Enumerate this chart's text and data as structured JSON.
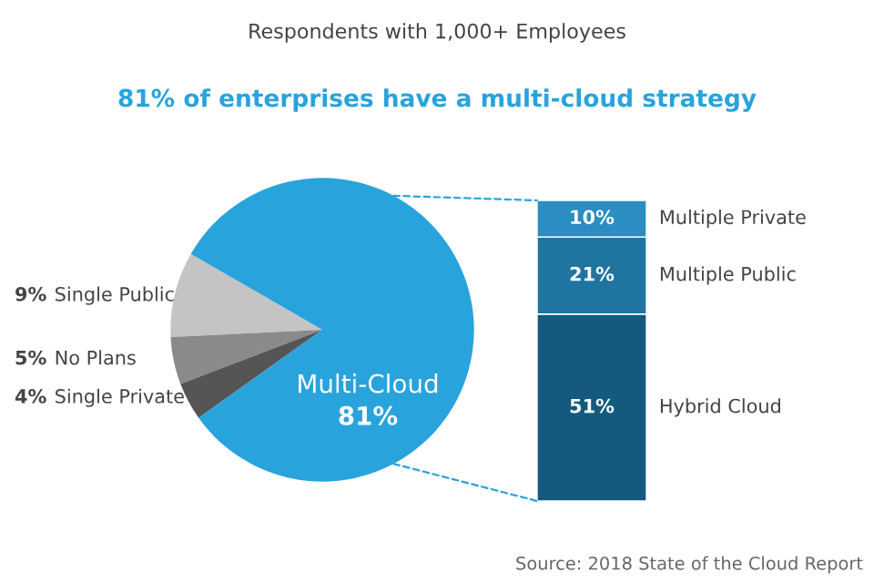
{
  "chart_data": [
    {
      "type": "pie",
      "title": "81% of enterprises have a multi-cloud strategy",
      "subtitle": "Respondents with 1,000+ Employees",
      "categories": [
        "Single Public",
        "No Plans",
        "Single Private",
        "Multi-Cloud"
      ],
      "values": [
        9,
        5,
        4,
        81
      ],
      "value_labels": [
        "9%",
        "5%",
        "4%",
        "81%"
      ],
      "colors": [
        "#c4c4c4",
        "#8a8a8a",
        "#555555",
        "#29a3dc"
      ]
    },
    {
      "type": "bar",
      "stacked": true,
      "categories": [
        null
      ],
      "series": [
        {
          "name": "Hybrid Cloud",
          "color": "#135a7e",
          "values": [
            51
          ],
          "value_labels": [
            "51%"
          ]
        },
        {
          "name": "Multiple Public",
          "color": "#1f74a0",
          "values": [
            21
          ],
          "value_labels": [
            "21%"
          ]
        },
        {
          "name": "Multiple Private",
          "color": "#2b8dc2",
          "values": [
            10
          ],
          "value_labels": [
            "10%"
          ]
        }
      ],
      "annotations": [
        "Source: 2018 State of the Cloud Report"
      ]
    }
  ]
}
